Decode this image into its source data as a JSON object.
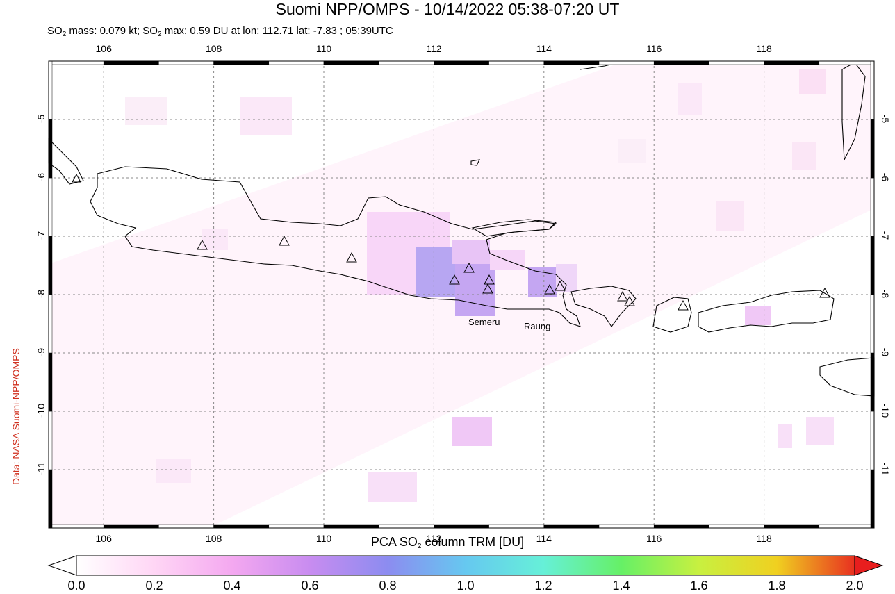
{
  "header": {
    "title": "Suomi NPP/OMPS - 10/14/2022 05:38-07:20 UT",
    "subtitle_prefix": "SO",
    "subtitle_mid": " mass: 0.079 kt; SO",
    "subtitle_rest": " max: 0.59 DU at lon: 112.71 lat: -7.83 ; 05:39UTC",
    "subscript": "2"
  },
  "credit": "Data: NASA Suomi-NPP/OMPS",
  "map": {
    "lon_range": [
      105,
      120
    ],
    "lat_range": [
      -12,
      -4
    ],
    "x_ticks": [
      "106",
      "108",
      "110",
      "112",
      "114",
      "116",
      "118"
    ],
    "y_ticks": [
      "-5",
      "-6",
      "-7",
      "-8",
      "-9",
      "-10",
      "-11"
    ],
    "grid": true,
    "volcano_labels": [
      "Semeru",
      "Raung"
    ]
  },
  "colorbar": {
    "label_prefix": "PCA SO",
    "label_suffix": " column TRM [DU]",
    "ticks": [
      "0.0",
      "0.2",
      "0.4",
      "0.6",
      "0.8",
      "1.0",
      "1.2",
      "1.4",
      "1.6",
      "1.8",
      "2.0"
    ],
    "range": [
      0,
      2.0
    ],
    "colors": [
      "#ffffff",
      "#ffd6f5",
      "#f4a8f0",
      "#c88cf0",
      "#8c8cf0",
      "#66c8f0",
      "#66f0d8",
      "#66f066",
      "#c8f040",
      "#f0d020",
      "#f07020",
      "#e81e1e"
    ]
  }
}
